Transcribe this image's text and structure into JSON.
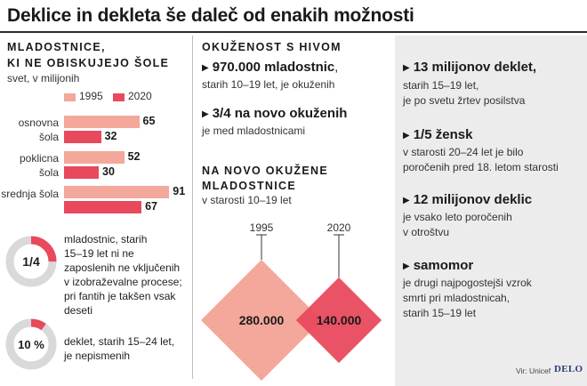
{
  "headline": "Deklice in dekleta še daleč od enakih možnosti",
  "colors": {
    "y1995": "#f4a79b",
    "y2020": "#e9495d",
    "donut_bg": "#d9d9d9",
    "panel": "#ececec"
  },
  "schooling": {
    "title_line1": "MLADOSTNICE,",
    "title_line2": "KI NE OBISKUJEJO ŠOLE",
    "subtitle": "svet, v milijonih",
    "legend": [
      "1995",
      "2020"
    ],
    "chart_data": {
      "type": "bar",
      "orientation": "horizontal",
      "title": "Mladostnice, ki ne obiskujejo šole",
      "unit": "svet, v milijonih",
      "categories": [
        "osnovna šola",
        "poklicna šola",
        "srednja šola"
      ],
      "category_lines": [
        [
          "osnovna",
          "šola"
        ],
        [
          "poklicna",
          "šola"
        ],
        [
          "srednja šola"
        ]
      ],
      "series": [
        {
          "name": "1995",
          "values": [
            65,
            52,
            91
          ]
        },
        {
          "name": "2020",
          "values": [
            32,
            30,
            67
          ]
        }
      ],
      "xlim": [
        0,
        100
      ]
    }
  },
  "donuts": [
    {
      "label": "1/4",
      "fraction": 0.25,
      "text_lines": [
        "mladostnic, starih",
        "15–19 let ni ne",
        "zaposlenih ne vključenih",
        "v izobraževalne procese;",
        "pri fantih je takšen vsak",
        "deseti"
      ]
    },
    {
      "label": "10 %",
      "fraction": 0.1,
      "text_lines": [
        "deklet, starih 15–24 let,",
        "je nepismenih"
      ]
    }
  ],
  "hiv": {
    "title": "OKUŽENOST S HIVOM",
    "facts": [
      {
        "head": "970.000 mladostnic",
        "tail": ",",
        "sub": "starih 10–19 let, je okuženih"
      },
      {
        "head": "3/4 na novo okuženih",
        "tail": "",
        "sub": "je med mladostnicami"
      }
    ],
    "new_title_line1": "NA NOVO OKUŽENE",
    "new_title_line2": "MLADOSTNICE",
    "new_subtitle": "v starosti 10–19 let",
    "diamond_data": {
      "type": "area",
      "points": [
        {
          "year": "1995",
          "value": 280000,
          "label": "280.000"
        },
        {
          "year": "2020",
          "value": 140000,
          "label": "140.000"
        }
      ]
    }
  },
  "right_facts": [
    {
      "head": "13 milijonov deklet,",
      "lines": [
        "starih 15–19 let,",
        "je po svetu žrtev posilstva"
      ]
    },
    {
      "head": "1/5 žensk",
      "lines": [
        "v starosti 20–24 let je bilo",
        "poročenih pred 18. letom starosti"
      ]
    },
    {
      "head": "12 milijonov deklic",
      "lines": [
        "je vsako leto poročenih",
        "v otroštvu"
      ]
    },
    {
      "head": "samomor",
      "lines": [
        "je drugi najpogostejši vzrok",
        "smrti pri mladostnicah,",
        "starih 15–19 let"
      ]
    }
  ],
  "source": "Vir: Unicef",
  "logo": "DELO"
}
